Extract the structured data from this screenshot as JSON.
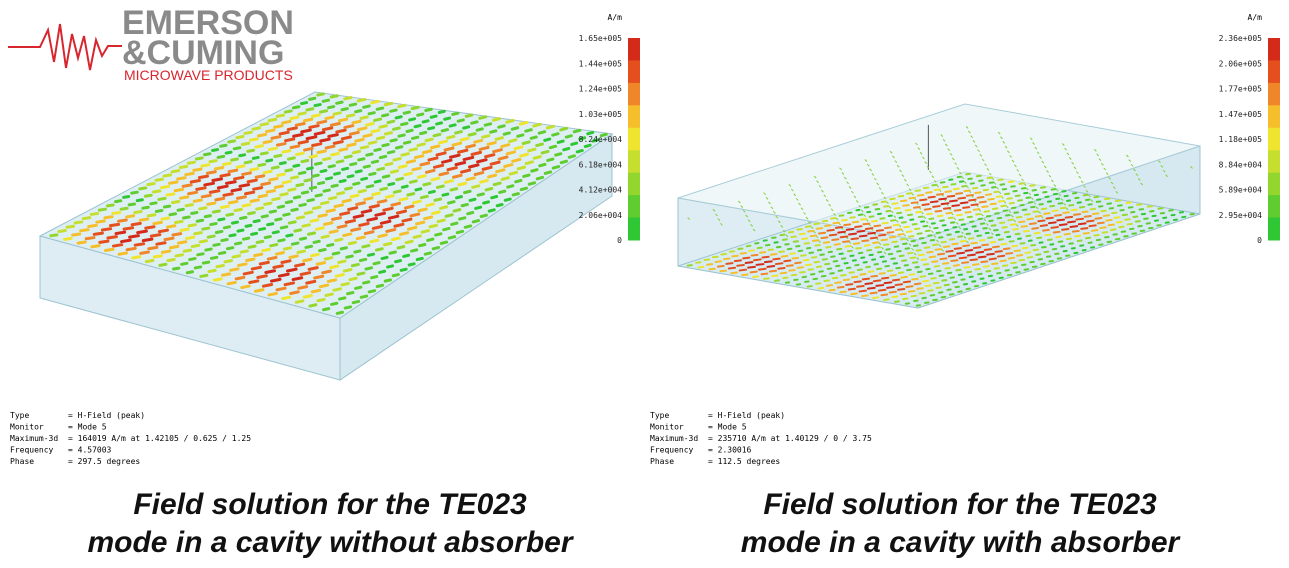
{
  "logo": {
    "line1": "EMERSON",
    "line2": "&CUMING",
    "line3": "MICROWAVE PRODUCTS"
  },
  "panels": [
    {
      "colorbar": {
        "unit": "A/m",
        "labels": [
          "1.65e+005",
          "1.44e+005",
          "1.24e+005",
          "1.03e+005",
          "8.24e+004",
          "6.18e+004",
          "4.12e+004",
          "2.06e+004",
          "0"
        ]
      },
      "info": [
        {
          "key": "Type",
          "value": "= H-Field (peak)"
        },
        {
          "key": "Monitor",
          "value": "= Mode 5"
        },
        {
          "key": "Maximum-3d",
          "value": "= 164019 A/m at 1.42105 / 0.625 / 1.25"
        },
        {
          "key": "Frequency",
          "value": "= 4.57003"
        },
        {
          "key": "Phase",
          "value": "= 297.5 degrees"
        }
      ],
      "caption": [
        "Field solution for the TE023",
        "mode in a cavity without absorber"
      ]
    },
    {
      "colorbar": {
        "unit": "A/m",
        "labels": [
          "2.36e+005",
          "2.06e+005",
          "1.77e+005",
          "1.47e+005",
          "1.18e+005",
          "8.84e+004",
          "5.89e+004",
          "2.95e+004",
          "0"
        ]
      },
      "info": [
        {
          "key": "Type",
          "value": "= H-Field (peak)"
        },
        {
          "key": "Monitor",
          "value": "= Mode 5"
        },
        {
          "key": "Maximum-3d",
          "value": "= 235710 A/m at 1.40129 / 0 / 3.75"
        },
        {
          "key": "Frequency",
          "value": "= 2.30016"
        },
        {
          "key": "Phase",
          "value": "= 112.5 degrees"
        }
      ],
      "caption": [
        "Field solution for the TE023",
        "mode in a cavity with absorber"
      ]
    }
  ]
}
